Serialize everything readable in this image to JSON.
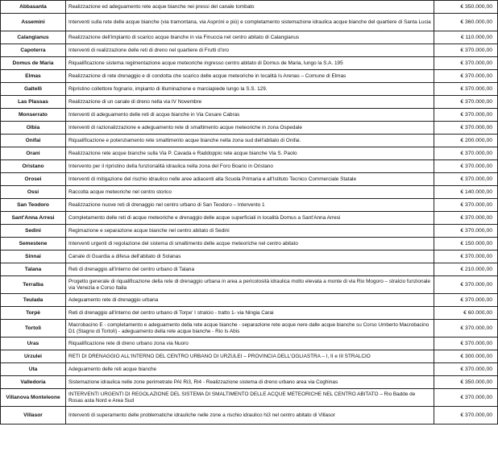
{
  "rows": [
    {
      "comune": "Abbasanta",
      "intervento": "Realizzazione ed adeguamento rete acque bianche nei pressi del canale tombato",
      "importo": "€ 350.000,00"
    },
    {
      "comune": "Assemini",
      "intervento": "Interventi sulla rete delle acque bianche (via tramontana, via Aspróni e più) e  completamento sistemazione idraulica acque bianche del quartiere di Santa Lucia",
      "importo": "€ 360.000,00",
      "tall": true
    },
    {
      "comune": "Calangianus",
      "intervento": "Realizzazione dell'impianto di scarico acque bianche in via Finuccia nel centro abitato di Calangianus",
      "importo": "€ 110.000,00"
    },
    {
      "comune": "Capoterra",
      "intervento": "Interventi di realizzazione delle reti di dreno nel quartiere di Frutti d'oro",
      "importo": "€ 370.000,00"
    },
    {
      "comune": "Domus de Maria",
      "intervento": "Riqualificazione sistema regimentazione acque meteoriche ingresso centro abitato di Domus de Maria, lungo la S.A. 195",
      "importo": "€ 370.000,00"
    },
    {
      "comune": "Elmas",
      "intervento": "Realizzazione di rete drenaggio e di condotta che scarico delle acque meteoriche in località Is Arenas – Comune di Elmas",
      "importo": "€ 370.000,00"
    },
    {
      "comune": "Galtellì",
      "intervento": "Ripristino collettore fognario, impianto di illuminazione e marciapiede lungo la S.S. 129.",
      "importo": "€ 370.000,00"
    },
    {
      "comune": "Las Plassas",
      "intervento": "Realizzazione di un canale di dreno nella via IV Novembre",
      "importo": "€ 370.000,00"
    },
    {
      "comune": "Monserrato",
      "intervento": "Interventi di adeguamento delle reti di acque bianche in Via Cesare Cabras",
      "importo": "€ 370.000,00"
    },
    {
      "comune": "Olbia",
      "intervento": "Interventi di razionalizzazione e adeguamento rete di smaltimento acque meteoriche in zona Ospedale",
      "importo": "€ 370.000,00"
    },
    {
      "comune": "Onifai",
      "intervento": "Riqualificazione e potenziamento rete smaltimento acque bianche nella zona sud dell'abitato di Onifai.",
      "importo": "€ 200.000,00"
    },
    {
      "comune": "Orani",
      "intervento": "Realizzazione rete acque bianche sulla Via P. Cavada e Raddoppio rete acque bianche Via S. Paolo",
      "importo": "€ 370.000,00"
    },
    {
      "comune": "Oristano",
      "intervento": "Intervento per il ripristino della funzionalità idraulica nella zona del Foro Boario in Oristano",
      "importo": "€ 370.000,00"
    },
    {
      "comune": "Orosei",
      "intervento": "Interventi di mitigazione del rischio idraulico nelle aree adiacenti alla Scuola Primaria e all'Istituto Tecnico Commerciale Statale",
      "importo": "€ 370.000,00"
    },
    {
      "comune": "Ossi",
      "intervento": "Raccolta acque meteoriche nel centro storico",
      "importo": "€ 140.000,00"
    },
    {
      "comune": "San Teodoro",
      "intervento": "Realizzazione nuove reti di drenaggio nel centro urbano di San Teodoro – Intervento 1",
      "importo": "€ 370.000,00"
    },
    {
      "comune": "Sant'Anna Arresi",
      "intervento": "Completamento delle reti di acque meteoriche e drenaggio delle acque superficiali in località Domus a Sant'Anna Arresi",
      "importo": "€ 370.000,00"
    },
    {
      "comune": "Sedini",
      "intervento": "Regimazione e  separazione  acque bianche nel centro abitato di Sedini",
      "importo": "€ 370.000,00"
    },
    {
      "comune": "Semestene",
      "intervento": "Interventi urgenti di regolazione del sistema di smaltimento delle acque meteoriche nel centro abitato",
      "importo": "€ 150.000,00"
    },
    {
      "comune": "Sinnai",
      "intervento": "Canale di Guardia a difesa dell'abitato di Solanas",
      "importo": "€ 370.000,00"
    },
    {
      "comune": "Talana",
      "intervento": "Reti di drenaggio all'interno del centro urbano di Talana",
      "importo": "€ 210.000,00"
    },
    {
      "comune": "Terralba",
      "intervento": "Progetto generale di riqualificazione della rete di drenaggio urbana in area a pericolosità idraulica molto elevata a monte di via Rio Mogoro – stralcio funzionale via Venezia e Corso Italia",
      "importo": "€ 370.000,00",
      "tall": true
    },
    {
      "comune": "Teulada",
      "intervento": "Adeguamento rete di drenaggio urbana",
      "importo": "€ 370.000,00"
    },
    {
      "comune": "Torpè",
      "intervento": "Reti di drenaggio all'interno del centro urbano di Torpe' I stralcio - tratto 1- via Ningia Carai",
      "importo": "€ 60.000,00"
    },
    {
      "comune": "Tortolì",
      "intervento": "Macrobacino E - completamento e adeguamento della rete acque bianche - separazione rete acque nere dalle acque bianche su Corso Umberto Macrobacino D1 (Stagno di Tortolì) - adeguamento della rete acque bianche - Rio Is Abis",
      "importo": "€ 370.000,00",
      "tall": true
    },
    {
      "comune": "Uras",
      "intervento": "Riqualificazione rete di dreno urbano zona via Nuoro",
      "importo": "€ 370.000,00"
    },
    {
      "comune": "Urzulei",
      "intervento": "RETI DI DRENAGGIO ALL'INTERNO DEL CENTRO URBANO DI URZULEI – PROVINCIA DELL'OGLIASTRA – I, II e III STRALCIO",
      "importo": "€ 300.000,00"
    },
    {
      "comune": "Uta",
      "intervento": "Adeguamento delle reti acque bianche",
      "importo": "€ 370.000,00"
    },
    {
      "comune": "Valledoria",
      "intervento": "Sistemazione idraulica nelle zone perimetrate PAI Ri3, Ri4 - Realizzazione sistema di dreno urbano area via Coghinas",
      "importo": "€ 350.000,00"
    },
    {
      "comune": "Villanova Monteleone",
      "intervento": "INTERVENTI URGENTI DI REGOLAZIONE DEL SISTEMA DI SMALTIMENTO DELLE ACQUE METEORICHE NEL CENTRO ABITATO – Rio Badde de Rosas asta Nord e Area Sud",
      "importo": "€ 370.000,00",
      "tall": true
    },
    {
      "comune": "Villasor",
      "intervento": "Interventi di superamento delle problematiche idrauliche nelle zone a rischio idraulico hi3 nel centro abitato di Villasor",
      "importo": "€ 370.000,00",
      "tall": true
    }
  ]
}
